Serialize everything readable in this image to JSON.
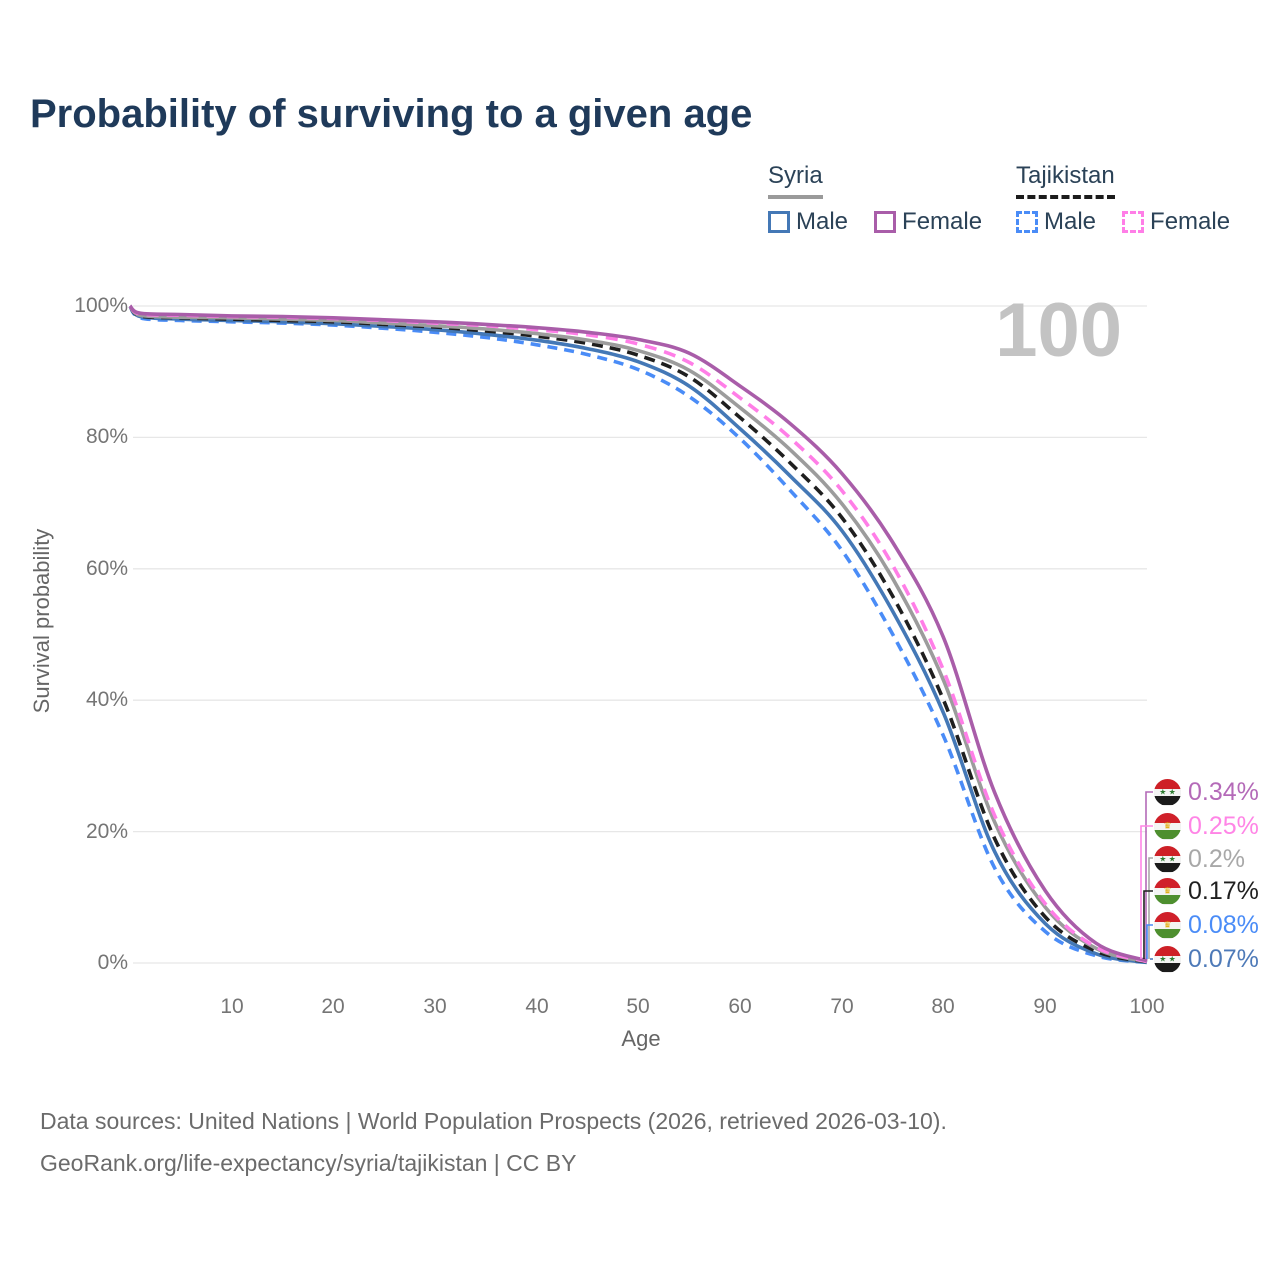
{
  "title": "Probability of surviving to a given age",
  "watermark": "100",
  "legend": {
    "groups": [
      {
        "name": "Syria",
        "underline_style": "solid",
        "underline_color": "#9a9a9a",
        "items": [
          {
            "label": "Male",
            "color": "#4478b6",
            "dashed": false
          },
          {
            "label": "Female",
            "color": "#a95da9",
            "dashed": false
          }
        ]
      },
      {
        "name": "Tajikistan",
        "underline_style": "dashed",
        "underline_color": "#1c1c1c",
        "items": [
          {
            "label": "Male",
            "color": "#4a8cf7",
            "dashed": true
          },
          {
            "label": "Female",
            "color": "#ff7ee7",
            "dashed": true
          }
        ]
      }
    ]
  },
  "chart_data": {
    "type": "line",
    "title": "Probability of surviving to a given age",
    "xlabel": "Age",
    "ylabel": "Survival probability",
    "xlim": [
      0,
      100
    ],
    "ylim": [
      0,
      100
    ],
    "grid": "horizontal",
    "x_ticks": [
      "10",
      "20",
      "30",
      "40",
      "50",
      "60",
      "70",
      "80",
      "90",
      "100"
    ],
    "x_tick_values": [
      10,
      20,
      30,
      40,
      50,
      60,
      70,
      80,
      90,
      100
    ],
    "y_ticks": [
      "100%",
      "80%",
      "60%",
      "40%",
      "20%",
      "0%"
    ],
    "y_tick_values": [
      100,
      80,
      60,
      40,
      20,
      0
    ],
    "x": [
      0,
      1,
      5,
      10,
      15,
      20,
      25,
      30,
      35,
      40,
      45,
      50,
      55,
      60,
      65,
      70,
      75,
      80,
      85,
      90,
      95,
      100
    ],
    "series": [
      {
        "name": "Tajikistan Male",
        "country": "Tajikistan",
        "sex": "Male",
        "color": "#4a8cf7",
        "dash": "10 7",
        "values": [
          100,
          98.2,
          97.8,
          97.6,
          97.4,
          97.1,
          96.6,
          96.0,
          95.2,
          94.1,
          92.6,
          90.3,
          86.2,
          79.8,
          71.8,
          62.8,
          50.0,
          34.5,
          14.5,
          4.8,
          1.1,
          0.08
        ]
      },
      {
        "name": "Syria Male",
        "country": "Syria",
        "sex": "Male",
        "color": "#4478b6",
        "dash": null,
        "values": [
          100,
          98.4,
          98.0,
          97.8,
          97.6,
          97.3,
          96.9,
          96.4,
          95.7,
          94.8,
          93.5,
          91.5,
          87.8,
          81.3,
          74.0,
          65.8,
          53.5,
          38.0,
          17.0,
          6.0,
          1.4,
          0.07
        ]
      },
      {
        "name": "Tajikistan",
        "country": "Tajikistan",
        "sex": "Both",
        "color": "#1f1f1f",
        "dash": "11 7",
        "values": [
          100,
          98.5,
          98.2,
          98.0,
          97.8,
          97.6,
          97.2,
          96.8,
          96.2,
          95.4,
          94.3,
          92.5,
          89.2,
          83.0,
          76.0,
          67.8,
          55.8,
          40.0,
          19.0,
          7.0,
          1.8,
          0.17
        ]
      },
      {
        "name": "Syria",
        "country": "Syria",
        "sex": "Both",
        "color": "#9c9c9c",
        "dash": null,
        "values": [
          100,
          98.6,
          98.3,
          98.2,
          98.0,
          97.8,
          97.4,
          97.0,
          96.5,
          95.8,
          94.8,
          93.2,
          90.2,
          84.5,
          78.0,
          69.9,
          58.5,
          43.0,
          21.5,
          8.5,
          2.2,
          0.2
        ]
      },
      {
        "name": "Tajikistan Female",
        "country": "Tajikistan",
        "sex": "Female",
        "color": "#ff7ee7",
        "dash": "12 8",
        "values": [
          100,
          98.8,
          98.6,
          98.4,
          98.3,
          98.1,
          97.8,
          97.4,
          97.0,
          96.4,
          95.6,
          94.2,
          91.4,
          86.0,
          79.8,
          71.9,
          60.5,
          44.5,
          22.5,
          9.0,
          2.4,
          0.25
        ]
      },
      {
        "name": "Syria Female",
        "country": "Syria",
        "sex": "Female",
        "color": "#a95da9",
        "dash": null,
        "values": [
          100,
          98.9,
          98.7,
          98.5,
          98.4,
          98.2,
          97.9,
          97.6,
          97.2,
          96.7,
          96.0,
          94.9,
          92.8,
          87.8,
          82.0,
          74.5,
          64.0,
          49.5,
          26.0,
          11.0,
          3.0,
          0.34
        ]
      }
    ]
  },
  "end_labels": [
    {
      "value": "0.34%",
      "country": "syria",
      "color": "#b46ab8"
    },
    {
      "value": "0.25%",
      "country": "tajikistan",
      "color": "#ff85e6"
    },
    {
      "value": "0.2%",
      "country": "syria",
      "color": "#a8a8a8"
    },
    {
      "value": "0.17%",
      "country": "tajikistan",
      "color": "#1f1f1f"
    },
    {
      "value": "0.08%",
      "country": "tajikistan",
      "color": "#4a8cf7"
    },
    {
      "value": "0.07%",
      "country": "syria",
      "color": "#4e7ab8"
    }
  ],
  "flags": {
    "syria": {
      "red": "#ce2027",
      "white": "#f4f4f4",
      "black": "#1b1b1b",
      "star_color": "#2e7d32",
      "emblem": "★ ★"
    },
    "tajikistan": {
      "red": "#d0202a",
      "white": "#f4f4f4",
      "green": "#4e8f2f",
      "gold_color": "#dfa800",
      "emblem": "♛"
    }
  },
  "footer": {
    "line1": "Data sources: United Nations | World Population Prospects (2026, retrieved 2026-03-10).",
    "line2": "GeoRank.org/life-expectancy/syria/tajikistan | CC BY"
  }
}
